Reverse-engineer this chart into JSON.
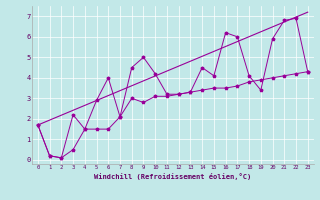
{
  "xlabel": "Windchill (Refroidissement éolien,°C)",
  "xlim": [
    -0.5,
    23.5
  ],
  "ylim": [
    -0.2,
    7.5
  ],
  "xticks": [
    0,
    1,
    2,
    3,
    4,
    5,
    6,
    7,
    8,
    9,
    10,
    11,
    12,
    13,
    14,
    15,
    16,
    17,
    18,
    19,
    20,
    21,
    22,
    23
  ],
  "yticks": [
    0,
    1,
    2,
    3,
    4,
    5,
    6,
    7
  ],
  "bg_color": "#c2e8e8",
  "line_color": "#990099",
  "grid_color": "#aad4d4",
  "series1_x": [
    0,
    1,
    2,
    3,
    4,
    5,
    6,
    7,
    8,
    9,
    10,
    11,
    12,
    13,
    14,
    15,
    16,
    17,
    18,
    19,
    20,
    21,
    22,
    23
  ],
  "series1_y": [
    1.7,
    0.2,
    0.1,
    2.2,
    1.5,
    2.9,
    4.0,
    2.1,
    4.5,
    5.0,
    4.2,
    3.2,
    3.2,
    3.3,
    4.5,
    4.1,
    6.2,
    6.0,
    4.1,
    3.4,
    5.9,
    6.8,
    6.9,
    4.3
  ],
  "series2_x": [
    0,
    1,
    2,
    3,
    4,
    5,
    6,
    7,
    8,
    9,
    10,
    11,
    12,
    13,
    14,
    15,
    16,
    17,
    18,
    19,
    20,
    21,
    22,
    23
  ],
  "series2_y": [
    1.7,
    0.2,
    0.1,
    0.5,
    1.5,
    1.5,
    1.5,
    2.1,
    3.0,
    2.8,
    3.1,
    3.1,
    3.2,
    3.3,
    3.4,
    3.5,
    3.5,
    3.6,
    3.8,
    3.9,
    4.0,
    4.1,
    4.2,
    4.3
  ],
  "series3_x": [
    0,
    23
  ],
  "series3_y": [
    1.7,
    7.2
  ]
}
